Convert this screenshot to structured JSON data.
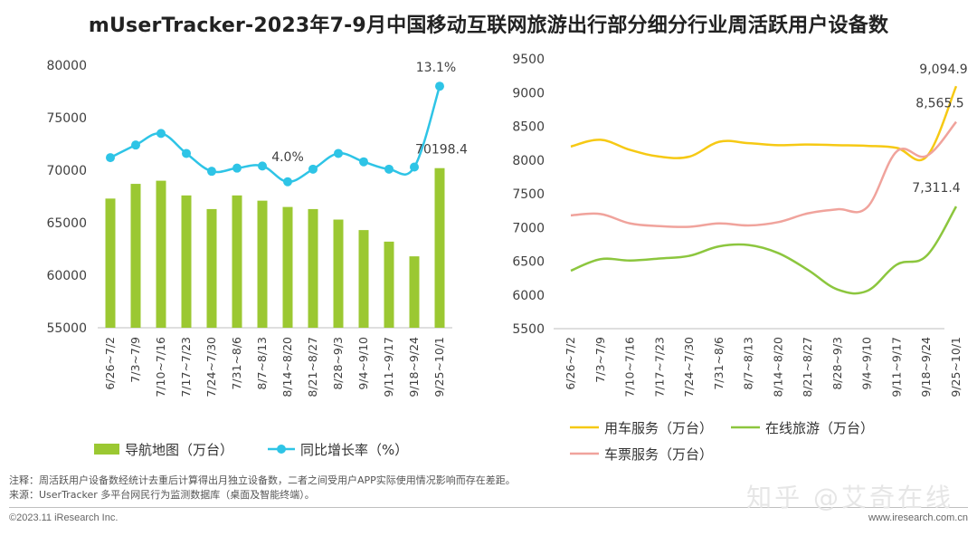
{
  "title": "mUserTracker-2023年7-9月中国移动互联网旅游出行部分细分行业周活跃用户设备数",
  "chart_data": [
    {
      "type": "bar+line",
      "categories": [
        "6/26~7/2",
        "7/3~7/9",
        "7/10~7/16",
        "7/17~7/23",
        "7/24~7/30",
        "7/31~8/6",
        "8/7~8/13",
        "8/14~8/20",
        "8/21~8/27",
        "8/28~9/3",
        "9/4~9/10",
        "9/11~9/17",
        "9/18~9/24",
        "9/25~10/1"
      ],
      "ylim": [
        55000,
        80000
      ],
      "yticks": [
        "80000",
        "75000",
        "70000",
        "65000",
        "60000",
        "55000"
      ],
      "series": [
        {
          "name": "导航地图（万台）",
          "kind": "bar",
          "color": "#9bc832",
          "values": [
            67300,
            68700,
            69000,
            67600,
            66300,
            67600,
            67100,
            66500,
            66300,
            65300,
            64300,
            63200,
            61800,
            70198.4
          ]
        },
        {
          "name": "同比增长率（%）",
          "kind": "line",
          "color": "#2ec4e6",
          "values_on_left_axis": [
            71200,
            72400,
            73500,
            71600,
            69900,
            70200,
            70400,
            68900,
            70100,
            71600,
            70800,
            70100,
            70300,
            78000
          ]
        }
      ],
      "data_labels": [
        "70198.4",
        "13.1%",
        "4.0%"
      ],
      "legend": "bottom"
    },
    {
      "type": "line",
      "categories": [
        "6/26~7/2",
        "7/3~7/9",
        "7/10~7/16",
        "7/17~7/23",
        "7/24~7/30",
        "7/31~8/6",
        "8/7~8/13",
        "8/14~8/20",
        "8/21~8/27",
        "8/28~9/3",
        "9/4~9/10",
        "9/11~9/17",
        "9/18~9/24",
        "9/25~10/1"
      ],
      "ylim": [
        5500,
        9500
      ],
      "yticks": [
        "9500",
        "9000",
        "8500",
        "8000",
        "7500",
        "7000",
        "6500",
        "6000",
        "5500"
      ],
      "series": [
        {
          "name": "用车服务（万台）",
          "color": "#f6c914",
          "values": [
            8200,
            8300,
            8150,
            8050,
            8050,
            8270,
            8250,
            8220,
            8230,
            8220,
            8210,
            8180,
            8050,
            9094.9
          ]
        },
        {
          "name": "在线旅游（万台）",
          "color": "#8cc63e",
          "values": [
            6360,
            6530,
            6510,
            6540,
            6580,
            6720,
            6740,
            6620,
            6370,
            6080,
            6060,
            6450,
            6580,
            7311.4
          ]
        },
        {
          "name": "车票服务（万台）",
          "color": "#f0a39c",
          "values": [
            7180,
            7200,
            7060,
            7020,
            7010,
            7060,
            7030,
            7080,
            7210,
            7270,
            7300,
            8130,
            8060,
            8565.5
          ]
        }
      ],
      "data_labels": [
        "9,094.9",
        "8,565.5",
        "7,311.4"
      ],
      "legend": "bottom"
    }
  ],
  "notes": {
    "note1": "注释：周活跃用户设备数经统计去重后计算得出月独立设备数，二者之间受用户APP实际使用情况影响而存在差距。",
    "note2": "来源：UserTracker 多平台网民行为监测数据库（桌面及智能终端）。"
  },
  "footer": {
    "left": "©2023.11 iResearch Inc.",
    "right": "www.iresearch.com.cn"
  },
  "watermark": "知乎 @艾奇在线"
}
